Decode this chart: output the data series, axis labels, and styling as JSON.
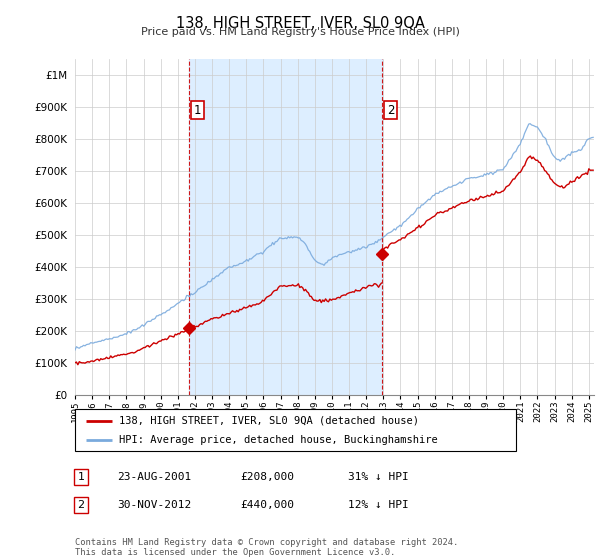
{
  "title": "138, HIGH STREET, IVER, SL0 9QA",
  "subtitle": "Price paid vs. HM Land Registry's House Price Index (HPI)",
  "legend_label_red": "138, HIGH STREET, IVER, SL0 9QA (detached house)",
  "legend_label_blue": "HPI: Average price, detached house, Buckinghamshire",
  "annotation1_date": "23-AUG-2001",
  "annotation1_price": "£208,000",
  "annotation1_hpi": "31% ↓ HPI",
  "annotation2_date": "30-NOV-2012",
  "annotation2_price": "£440,000",
  "annotation2_hpi": "12% ↓ HPI",
  "footer": "Contains HM Land Registry data © Crown copyright and database right 2024.\nThis data is licensed under the Open Government Licence v3.0.",
  "ylim": [
    0,
    1050000
  ],
  "sale1_year": 2001.65,
  "sale1_y": 208000,
  "sale2_year": 2012.92,
  "sale2_y": 440000,
  "xmin": 1995,
  "xmax": 2025.3,
  "background_color": "#ffffff",
  "grid_color": "#cccccc",
  "red_color": "#cc0000",
  "blue_color": "#7aaadd",
  "shade_color": "#ddeeff"
}
